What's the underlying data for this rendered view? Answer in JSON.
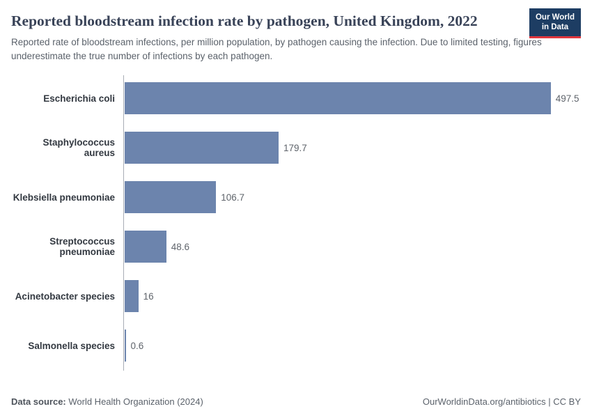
{
  "header": {
    "title": "Reported bloodstream infection rate by pathogen, United Kingdom, 2022",
    "subtitle": "Reported rate of bloodstream infections, per million population, by pathogen causing the infection. Due to limited testing, figures underestimate the true number of infections by each pathogen.",
    "logo": {
      "line1": "Our World",
      "line2": "in Data"
    }
  },
  "chart_data": {
    "type": "bar",
    "orientation": "horizontal",
    "title": "Reported bloodstream infection rate by pathogen, United Kingdom, 2022",
    "categories": [
      "Escherichia coli",
      "Staphylococcus aureus",
      "Klebsiella pneumoniae",
      "Streptococcus pneumoniae",
      "Acinetobacter species",
      "Salmonella species"
    ],
    "values": [
      497.5,
      179.7,
      106.7,
      48.6,
      16,
      0.6
    ],
    "value_labels": [
      "497.5",
      "179.7",
      "106.7",
      "48.6",
      "16",
      "0.6"
    ],
    "xlabel": "",
    "ylabel": "",
    "xlim": [
      0,
      497.5
    ],
    "grid": false,
    "legend": "none",
    "bar_color": "#6c84ad",
    "axis_line_color": "#a8adb5"
  },
  "footer": {
    "source_label": "Data source:",
    "source_value": " World Health Organization (2024)",
    "right_link": "OurWorldinData.org/antibiotics",
    "right_suffix": " | CC BY"
  }
}
